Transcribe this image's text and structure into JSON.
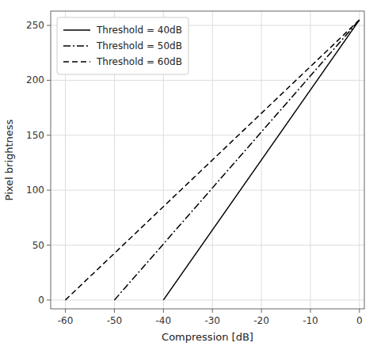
{
  "chart_data": {
    "type": "line",
    "xlabel": "Compression [dB]",
    "ylabel": "Pixel brightness",
    "xlim": [
      -63,
      1
    ],
    "ylim": [
      -8,
      263
    ],
    "xticks": [
      -60,
      -50,
      -40,
      -30,
      -20,
      -10,
      0
    ],
    "yticks": [
      0,
      50,
      100,
      150,
      200,
      250
    ],
    "grid": true,
    "legend": "upper left",
    "series": [
      {
        "name": "Threshold = 40dB",
        "color": "black",
        "line_style": "solid",
        "x": [
          -40,
          0
        ],
        "values": [
          0,
          255
        ]
      },
      {
        "name": "Threshold = 50dB",
        "color": "black",
        "line_style": "dashdot",
        "x": [
          -50,
          0
        ],
        "values": [
          0,
          255
        ]
      },
      {
        "name": "Threshold = 60dB",
        "color": "black",
        "line_style": "dashed",
        "x": [
          -60,
          0
        ],
        "values": [
          0,
          255
        ]
      }
    ]
  }
}
